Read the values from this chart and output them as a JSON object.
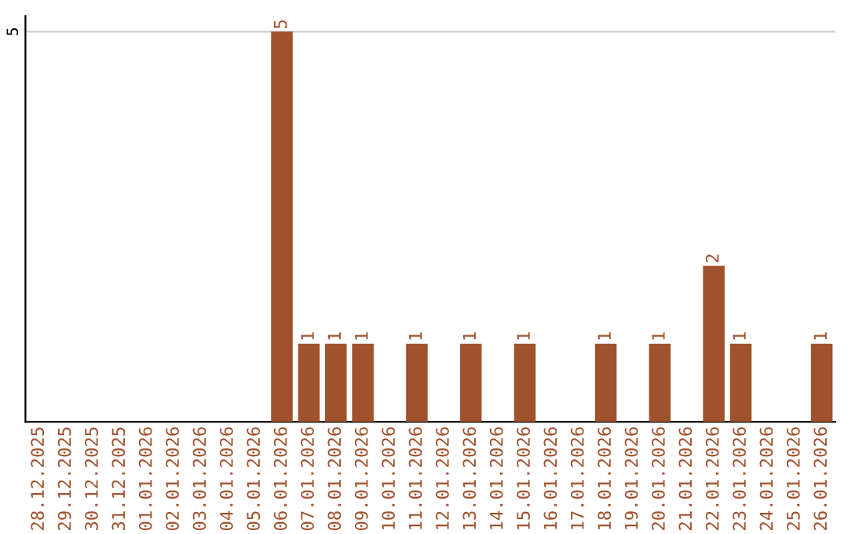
{
  "chart_data": {
    "type": "bar",
    "categories": [
      "28.12.2025",
      "29.12.2025",
      "30.12.2025",
      "31.12.2025",
      "01.01.2026",
      "02.01.2026",
      "03.01.2026",
      "04.01.2026",
      "05.01.2026",
      "06.01.2026",
      "07.01.2026",
      "08.01.2026",
      "09.01.2026",
      "10.01.2026",
      "11.01.2026",
      "12.01.2026",
      "13.01.2026",
      "14.01.2026",
      "15.01.2026",
      "16.01.2026",
      "17.01.2026",
      "18.01.2026",
      "19.01.2026",
      "20.01.2026",
      "21.01.2026",
      "22.01.2026",
      "23.01.2026",
      "24.01.2026",
      "25.01.2026",
      "26.01.2026"
    ],
    "values": [
      0,
      0,
      0,
      0,
      0,
      0,
      0,
      0,
      0,
      5,
      1,
      1,
      1,
      0,
      1,
      0,
      1,
      0,
      1,
      0,
      0,
      1,
      0,
      1,
      0,
      2,
      1,
      0,
      0,
      1
    ],
    "value_labels": [
      null,
      null,
      null,
      null,
      null,
      null,
      null,
      null,
      null,
      "5",
      "1",
      "1",
      "1",
      null,
      "1",
      null,
      "1",
      null,
      "1",
      null,
      null,
      "1",
      null,
      "1",
      null,
      "2",
      "1",
      null,
      null,
      "1"
    ],
    "color": "#a0522d",
    "ylim": [
      0,
      5.2
    ],
    "yticks": [
      5
    ],
    "grid": "y",
    "legend": false
  }
}
